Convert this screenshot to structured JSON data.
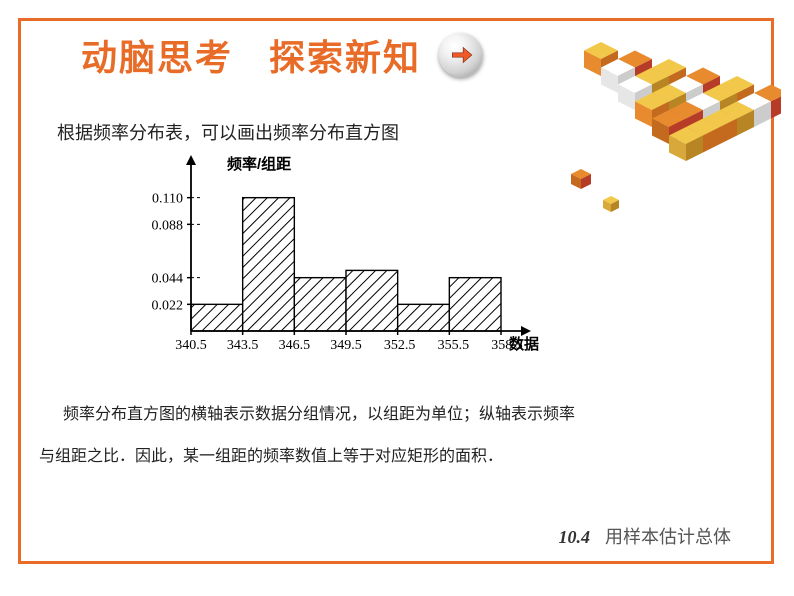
{
  "heading": {
    "part1": "动脑思考",
    "part2": "探索新知"
  },
  "intro": "根据频率分布表，可以画出频率分布直方图",
  "chart": {
    "type": "histogram",
    "y_axis_label": "频率/组距",
    "x_axis_label": "数据",
    "y_ticks": [
      0.022,
      0.044,
      0.088,
      0.11
    ],
    "y_max": 0.132,
    "x_ticks": [
      340.5,
      343.5,
      346.5,
      349.5,
      352.5,
      355.5,
      358.5
    ],
    "bars": [
      {
        "x0": 340.5,
        "x1": 343.5,
        "height": 0.022
      },
      {
        "x0": 343.5,
        "x1": 346.5,
        "height": 0.11
      },
      {
        "x0": 346.5,
        "x1": 349.5,
        "height": 0.044
      },
      {
        "x0": 349.5,
        "x1": 352.5,
        "height": 0.05
      },
      {
        "x0": 352.5,
        "x1": 355.5,
        "height": 0.022
      },
      {
        "x0": 355.5,
        "x1": 358.5,
        "height": 0.044
      }
    ],
    "bar_fill": "diagonal-hatch",
    "axis_color": "#000000",
    "axis_font_size": 14,
    "label_font_size": 15,
    "label_font_weight": "bold"
  },
  "explain1": "频率分布直方图的横轴表示数据分组情况，以组距为单位；纵轴表示频率",
  "explain2": "与组距之比．因此，某一组距的频率数值上等于对应矩形的面积．",
  "footer": {
    "section": "10.4",
    "title": "用样本估计总体"
  },
  "colors": {
    "accent": "#e86c28",
    "arrow": "#f05a28",
    "text": "#222222",
    "cube_orange": "#e88b2e",
    "cube_dark_orange": "#c36a1f",
    "cube_red": "#b73c28",
    "cube_yellow": "#f2c84b",
    "cube_white": "#ffffff"
  }
}
